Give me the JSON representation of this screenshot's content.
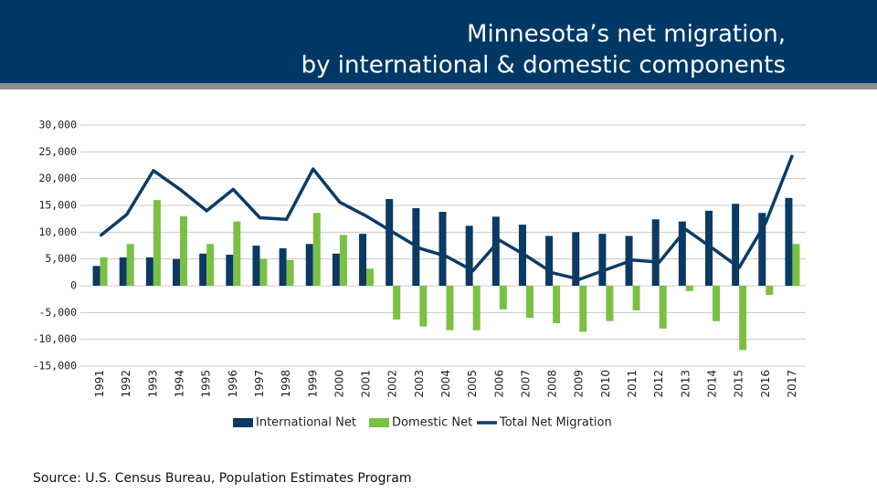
{
  "chart_data": {
    "type": "combo",
    "title": [
      "Minnesota’s net migration,",
      "by international & domestic components"
    ],
    "source": "Source: U.S. Census Bureau, Population Estimates Program",
    "categories": [
      "1991",
      "1992",
      "1993",
      "1994",
      "1995",
      "1996",
      "1997",
      "1998",
      "1999",
      "2000",
      "2001",
      "2002",
      "2003",
      "2004",
      "2005",
      "2006",
      "2007",
      "2008",
      "2009",
      "2010",
      "2011",
      "2012",
      "2013",
      "2014",
      "2015",
      "2016",
      "2017"
    ],
    "series": [
      {
        "name": "International Net",
        "type": "bar",
        "color": "#0b3a62",
        "values": [
          3700,
          5300,
          5300,
          5000,
          6000,
          5800,
          7500,
          7000,
          7800,
          6000,
          9700,
          16200,
          14500,
          13800,
          11200,
          12900,
          11400,
          9300,
          10000,
          9700,
          9300,
          12400,
          12000,
          14000,
          15300,
          13600,
          16400
        ]
      },
      {
        "name": "Domestic Net",
        "type": "bar",
        "color": "#7ac143",
        "values": [
          5300,
          7800,
          16000,
          13000,
          7800,
          12000,
          5000,
          4800,
          13600,
          9500,
          3200,
          -6300,
          -7600,
          -8300,
          -8300,
          -4400,
          -6000,
          -7000,
          -8600,
          -6600,
          -4600,
          -8000,
          -1000,
          -6600,
          -12000,
          -1700,
          7800
        ]
      },
      {
        "name": "Total Net Migration",
        "type": "line",
        "color": "#0d3b66",
        "values": [
          9300,
          13300,
          21500,
          18000,
          14000,
          18000,
          12700,
          12400,
          21800,
          15600,
          13000,
          10000,
          7000,
          5500,
          2800,
          8500,
          5600,
          2400,
          1200,
          3000,
          4800,
          4400,
          10500,
          7000,
          3400,
          11800,
          24400
        ]
      }
    ],
    "ylim": [
      -15000,
      30000
    ],
    "yticks": [
      {
        "value": -15000,
        "label": "-15,000"
      },
      {
        "value": -10000,
        "label": "-10,000"
      },
      {
        "value": -5000,
        "label": "-5,000"
      },
      0,
      {
        "value": 5000,
        "label": "5,000"
      },
      {
        "value": 10000,
        "label": "10,000"
      },
      {
        "value": 15000,
        "label": "15,000"
      },
      {
        "value": 20000,
        "label": "20,000"
      },
      {
        "value": 25000,
        "label": "25,000"
      },
      {
        "value": 30000,
        "label": "30,000"
      }
    ],
    "grid": true
  }
}
